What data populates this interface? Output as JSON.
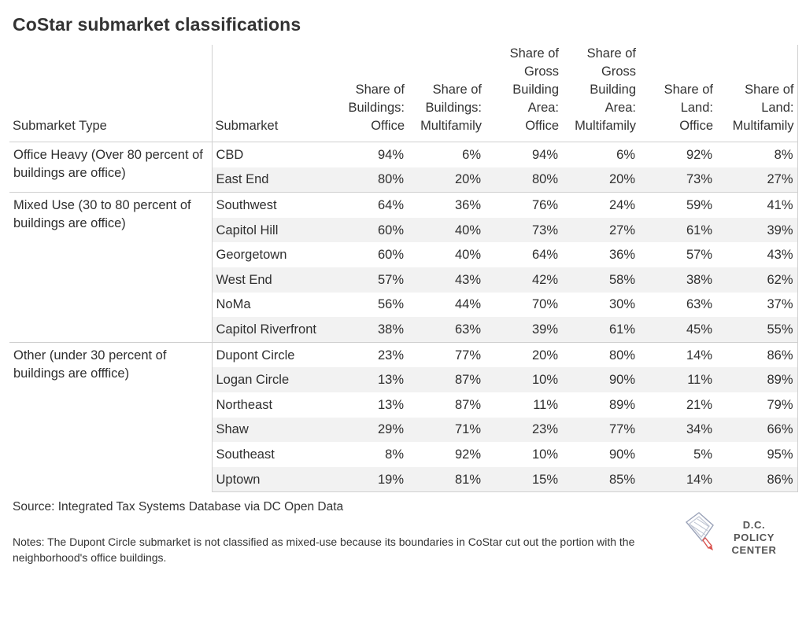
{
  "title": "CoStar submarket classifications",
  "headers": {
    "submarket_type": "Submarket Type",
    "submarket": "Submarket",
    "columns": [
      [
        "Share of",
        "Buildings:",
        "Office"
      ],
      [
        "Share of",
        "Buildings:",
        "Multifamily"
      ],
      [
        "Share of",
        "Gross",
        "Building",
        "Area:",
        "Office"
      ],
      [
        "Share of",
        "Gross",
        "Building",
        "Area:",
        "Multifamily"
      ],
      [
        "Share of",
        "Land:",
        "Office"
      ],
      [
        "Share of",
        "Land:",
        "Multifamily"
      ]
    ]
  },
  "groups": [
    {
      "type": "Office Heavy (Over 80 percent of buildings are office)",
      "rows": [
        {
          "name": "CBD",
          "values": [
            "94%",
            "6%",
            "94%",
            "6%",
            "92%",
            "8%"
          ]
        },
        {
          "name": "East End",
          "values": [
            "80%",
            "20%",
            "80%",
            "20%",
            "73%",
            "27%"
          ]
        }
      ]
    },
    {
      "type": "Mixed Use (30 to 80 percent of buildings are office)",
      "rows": [
        {
          "name": "Southwest",
          "values": [
            "64%",
            "36%",
            "76%",
            "24%",
            "59%",
            "41%"
          ]
        },
        {
          "name": "Capitol Hill",
          "values": [
            "60%",
            "40%",
            "73%",
            "27%",
            "61%",
            "39%"
          ]
        },
        {
          "name": "Georgetown",
          "values": [
            "60%",
            "40%",
            "64%",
            "36%",
            "57%",
            "43%"
          ]
        },
        {
          "name": "West End",
          "values": [
            "57%",
            "43%",
            "42%",
            "58%",
            "38%",
            "62%"
          ]
        },
        {
          "name": "NoMa",
          "values": [
            "56%",
            "44%",
            "70%",
            "30%",
            "63%",
            "37%"
          ]
        },
        {
          "name": "Capitol Riverfront",
          "values": [
            "38%",
            "63%",
            "39%",
            "61%",
            "45%",
            "55%"
          ]
        }
      ]
    },
    {
      "type": "Other (under 30 percent of buildings are offfice)",
      "rows": [
        {
          "name": "Dupont Circle",
          "values": [
            "23%",
            "77%",
            "20%",
            "80%",
            "14%",
            "86%"
          ]
        },
        {
          "name": "Logan Circle",
          "values": [
            "13%",
            "87%",
            "10%",
            "90%",
            "11%",
            "89%"
          ]
        },
        {
          "name": "Northeast",
          "values": [
            "13%",
            "87%",
            "11%",
            "89%",
            "21%",
            "79%"
          ]
        },
        {
          "name": "Shaw",
          "values": [
            "29%",
            "71%",
            "23%",
            "77%",
            "34%",
            "66%"
          ]
        },
        {
          "name": "Southeast",
          "values": [
            "8%",
            "92%",
            "10%",
            "90%",
            "5%",
            "95%"
          ]
        },
        {
          "name": "Uptown",
          "values": [
            "19%",
            "81%",
            "15%",
            "85%",
            "14%",
            "86%"
          ]
        }
      ]
    }
  ],
  "source": "Source: Integrated Tax Systems Database via DC Open Data",
  "notes": "Notes: The Dupont Circle submarket is not classified as mixed-use because its boundaries in CoStar cut out the portion with the neighborhood's office buildings.",
  "logo": {
    "line1": "D.C. POLICY",
    "line2": "CENTER",
    "icon": "dc-map-pencil-icon"
  },
  "colors": {
    "row_alt": "#f2f2f2",
    "rule": "#d0d0d0",
    "text": "#2f2f2f"
  }
}
